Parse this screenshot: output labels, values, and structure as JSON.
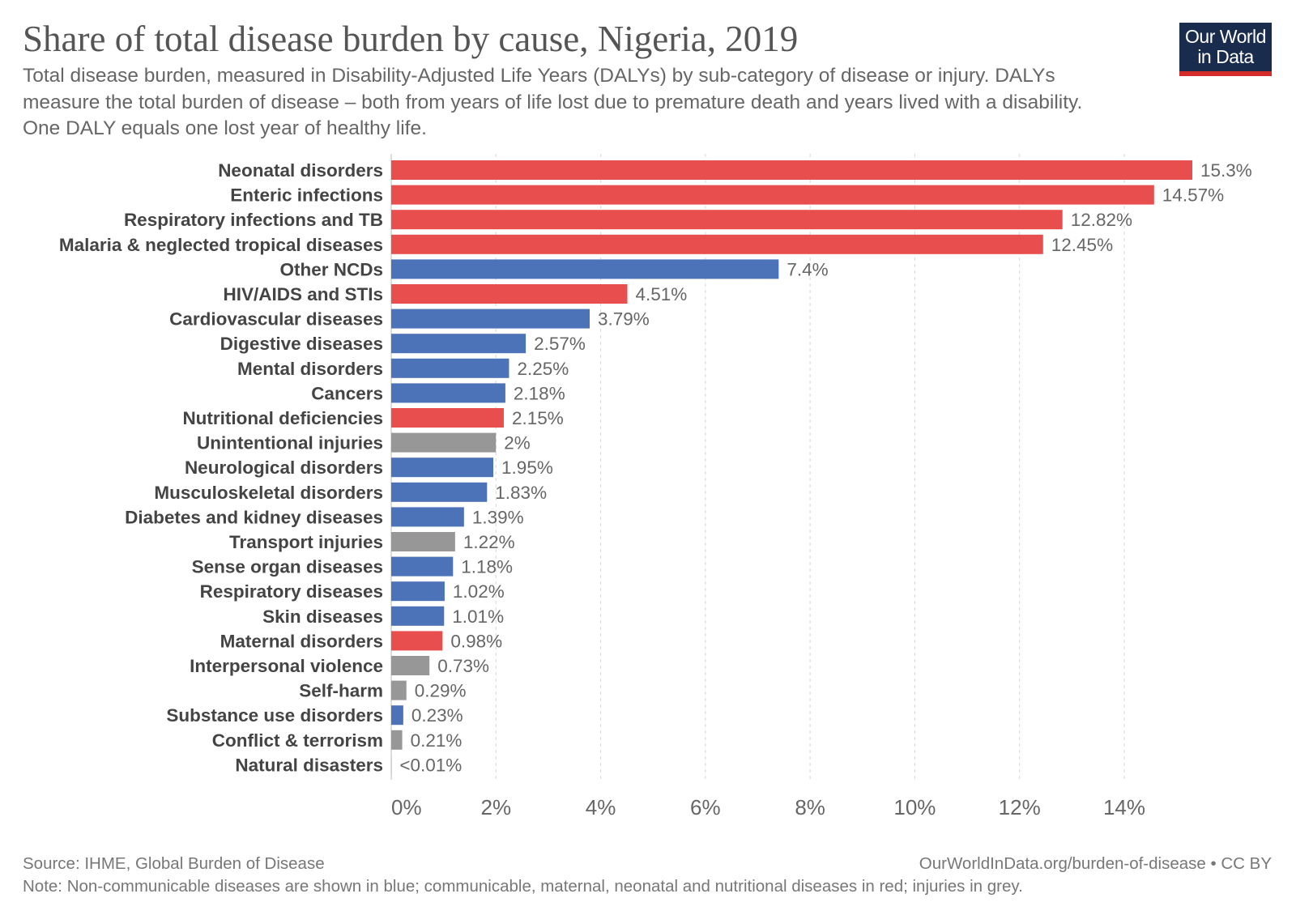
{
  "header": {
    "title": "Share of total disease burden by cause, Nigeria, 2019",
    "subtitle": "Total disease burden, measured in Disability-Adjusted Life Years (DALYs) by sub-category of disease or injury. DALYs measure the total burden of disease – both from years of life lost due to premature death and years lived with a disability. One DALY equals one lost year of healthy life.",
    "logo_line1": "Our World",
    "logo_line2": "in Data"
  },
  "footer": {
    "source": "Source: IHME, Global Burden of Disease",
    "url": "OurWorldInData.org/burden-of-disease • CC BY",
    "note": "Note: Non-communicable diseases are shown in blue; communicable, maternal, neonatal and nutritional diseases in red; injuries in grey."
  },
  "colors": {
    "communicable": "#e84e4e",
    "ncd": "#4c72b7",
    "injury": "#979797",
    "gridline": "#dddddd",
    "label": "#444444",
    "value": "#666666"
  },
  "chart_data": {
    "type": "bar",
    "orientation": "horizontal",
    "title": "Share of total disease burden by cause, Nigeria, 2019",
    "xlabel": "",
    "ylabel": "",
    "xlim": [
      0,
      15.3
    ],
    "xticks": [
      0,
      2,
      4,
      6,
      8,
      10,
      12,
      14
    ],
    "xtick_labels": [
      "0%",
      "2%",
      "4%",
      "6%",
      "8%",
      "10%",
      "12%",
      "14%"
    ],
    "grid": true,
    "categories": [
      "Neonatal disorders",
      "Enteric infections",
      "Respiratory infections and TB",
      "Malaria & neglected tropical diseases",
      "Other NCDs",
      "HIV/AIDS and STIs",
      "Cardiovascular diseases",
      "Digestive diseases",
      "Mental disorders",
      "Cancers",
      "Nutritional deficiencies",
      "Unintentional injuries",
      "Neurological disorders",
      "Musculoskeletal disorders",
      "Diabetes and kidney diseases",
      "Transport injuries",
      "Sense organ diseases",
      "Respiratory diseases",
      "Skin diseases",
      "Maternal disorders",
      "Interpersonal violence",
      "Self-harm",
      "Substance use disorders",
      "Conflict & terrorism",
      "Natural disasters"
    ],
    "values": [
      15.3,
      14.57,
      12.82,
      12.45,
      7.4,
      4.51,
      3.79,
      2.57,
      2.25,
      2.18,
      2.15,
      2.0,
      1.95,
      1.83,
      1.39,
      1.22,
      1.18,
      1.02,
      1.01,
      0.98,
      0.73,
      0.29,
      0.23,
      0.21,
      0.005
    ],
    "value_labels": [
      "15.3%",
      "14.57%",
      "12.82%",
      "12.45%",
      "7.4%",
      "4.51%",
      "3.79%",
      "2.57%",
      "2.25%",
      "2.18%",
      "2.15%",
      "2%",
      "1.95%",
      "1.83%",
      "1.39%",
      "1.22%",
      "1.18%",
      "1.02%",
      "1.01%",
      "0.98%",
      "0.73%",
      "0.29%",
      "0.23%",
      "0.21%",
      "<0.01%"
    ],
    "groups": [
      "communicable",
      "communicable",
      "communicable",
      "communicable",
      "ncd",
      "communicable",
      "ncd",
      "ncd",
      "ncd",
      "ncd",
      "communicable",
      "injury",
      "ncd",
      "ncd",
      "ncd",
      "injury",
      "ncd",
      "ncd",
      "ncd",
      "communicable",
      "injury",
      "injury",
      "ncd",
      "injury",
      "injury"
    ]
  }
}
